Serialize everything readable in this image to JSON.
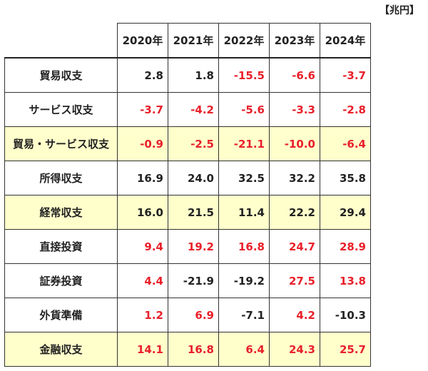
{
  "unit": "【兆円】",
  "chart_data": {
    "type": "table",
    "columns": [
      "2020年",
      "2021年",
      "2022年",
      "2023年",
      "2024年"
    ],
    "colors": {
      "red": "#e8202a",
      "black": "#222222",
      "highlight": "#ffffcc"
    },
    "rows": [
      {
        "label": "貿易収支",
        "highlight": false,
        "values": [
          "2.8",
          "1.8",
          "-15.5",
          "-6.6",
          "-3.7"
        ],
        "colors": [
          "black",
          "black",
          "red",
          "red",
          "red"
        ]
      },
      {
        "label": "サービス収支",
        "highlight": false,
        "values": [
          "-3.7",
          "-4.2",
          "-5.6",
          "-3.3",
          "-2.8"
        ],
        "colors": [
          "red",
          "red",
          "red",
          "red",
          "red"
        ]
      },
      {
        "label": "貿易・サービス収支",
        "highlight": true,
        "values": [
          "-0.9",
          "-2.5",
          "-21.1",
          "-10.0",
          "-6.4"
        ],
        "colors": [
          "red",
          "red",
          "red",
          "red",
          "red"
        ]
      },
      {
        "label": "所得収支",
        "highlight": false,
        "values": [
          "16.9",
          "24.0",
          "32.5",
          "32.2",
          "35.8"
        ],
        "colors": [
          "black",
          "black",
          "black",
          "black",
          "black"
        ]
      },
      {
        "label": "経常収支",
        "highlight": true,
        "values": [
          "16.0",
          "21.5",
          "11.4",
          "22.2",
          "29.4"
        ],
        "colors": [
          "black",
          "black",
          "black",
          "black",
          "black"
        ]
      },
      {
        "label": "直接投資",
        "highlight": false,
        "values": [
          "9.4",
          "19.2",
          "16.8",
          "24.7",
          "28.9"
        ],
        "colors": [
          "red",
          "red",
          "red",
          "red",
          "red"
        ]
      },
      {
        "label": "証券投資",
        "highlight": false,
        "values": [
          "4.4",
          "-21.9",
          "-19.2",
          "27.5",
          "13.8"
        ],
        "colors": [
          "red",
          "black",
          "black",
          "red",
          "red"
        ]
      },
      {
        "label": "外貨準備",
        "highlight": false,
        "values": [
          "1.2",
          "6.9",
          "-7.1",
          "4.2",
          "-10.3"
        ],
        "colors": [
          "red",
          "red",
          "black",
          "red",
          "black"
        ]
      },
      {
        "label": "金融収支",
        "highlight": true,
        "values": [
          "14.1",
          "16.8",
          "6.4",
          "24.3",
          "25.7"
        ],
        "colors": [
          "red",
          "red",
          "red",
          "red",
          "red"
        ]
      }
    ]
  }
}
